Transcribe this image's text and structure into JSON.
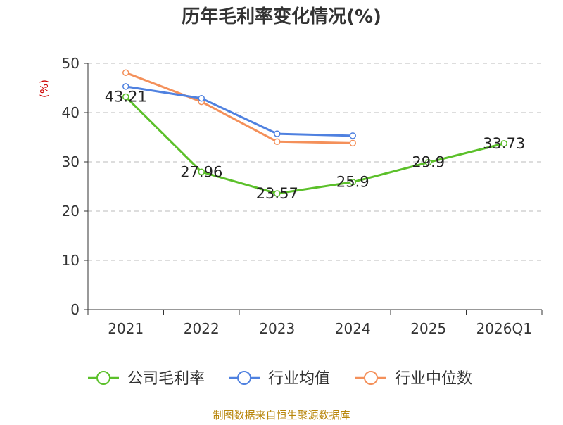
{
  "chart_data": {
    "type": "line",
    "title": "历年毛利率变化情况(%)",
    "ylabel": "(%)",
    "xlabel": "",
    "categories": [
      "2021",
      "2022",
      "2023",
      "2024",
      "2025",
      "2026Q1"
    ],
    "ylim": [
      0,
      50
    ],
    "yticks": [
      0,
      10,
      20,
      30,
      40,
      50
    ],
    "grid": true,
    "legend_position": "bottom",
    "series": [
      {
        "name": "公司毛利率",
        "color": "#5bc02a",
        "values": [
          43.21,
          27.96,
          23.57,
          25.9,
          29.9,
          33.73
        ],
        "labels": [
          "43.21",
          "27.96",
          "23.57",
          "25.9",
          "29.9",
          "33.73"
        ]
      },
      {
        "name": "行业均值",
        "color": "#4f81e0",
        "values": [
          45.3,
          42.9,
          35.7,
          35.3,
          null,
          null
        ]
      },
      {
        "name": "行业中位数",
        "color": "#f4905a",
        "values": [
          48.1,
          42.2,
          34.1,
          33.8,
          null,
          null
        ]
      }
    ]
  },
  "source_text": "制图数据来自恒生聚源数据库",
  "colors": {
    "title": "#333333",
    "axis": "#333333",
    "grid": "#bbbbbb",
    "ylabel": "#cc0000",
    "source": "#b8860b"
  }
}
